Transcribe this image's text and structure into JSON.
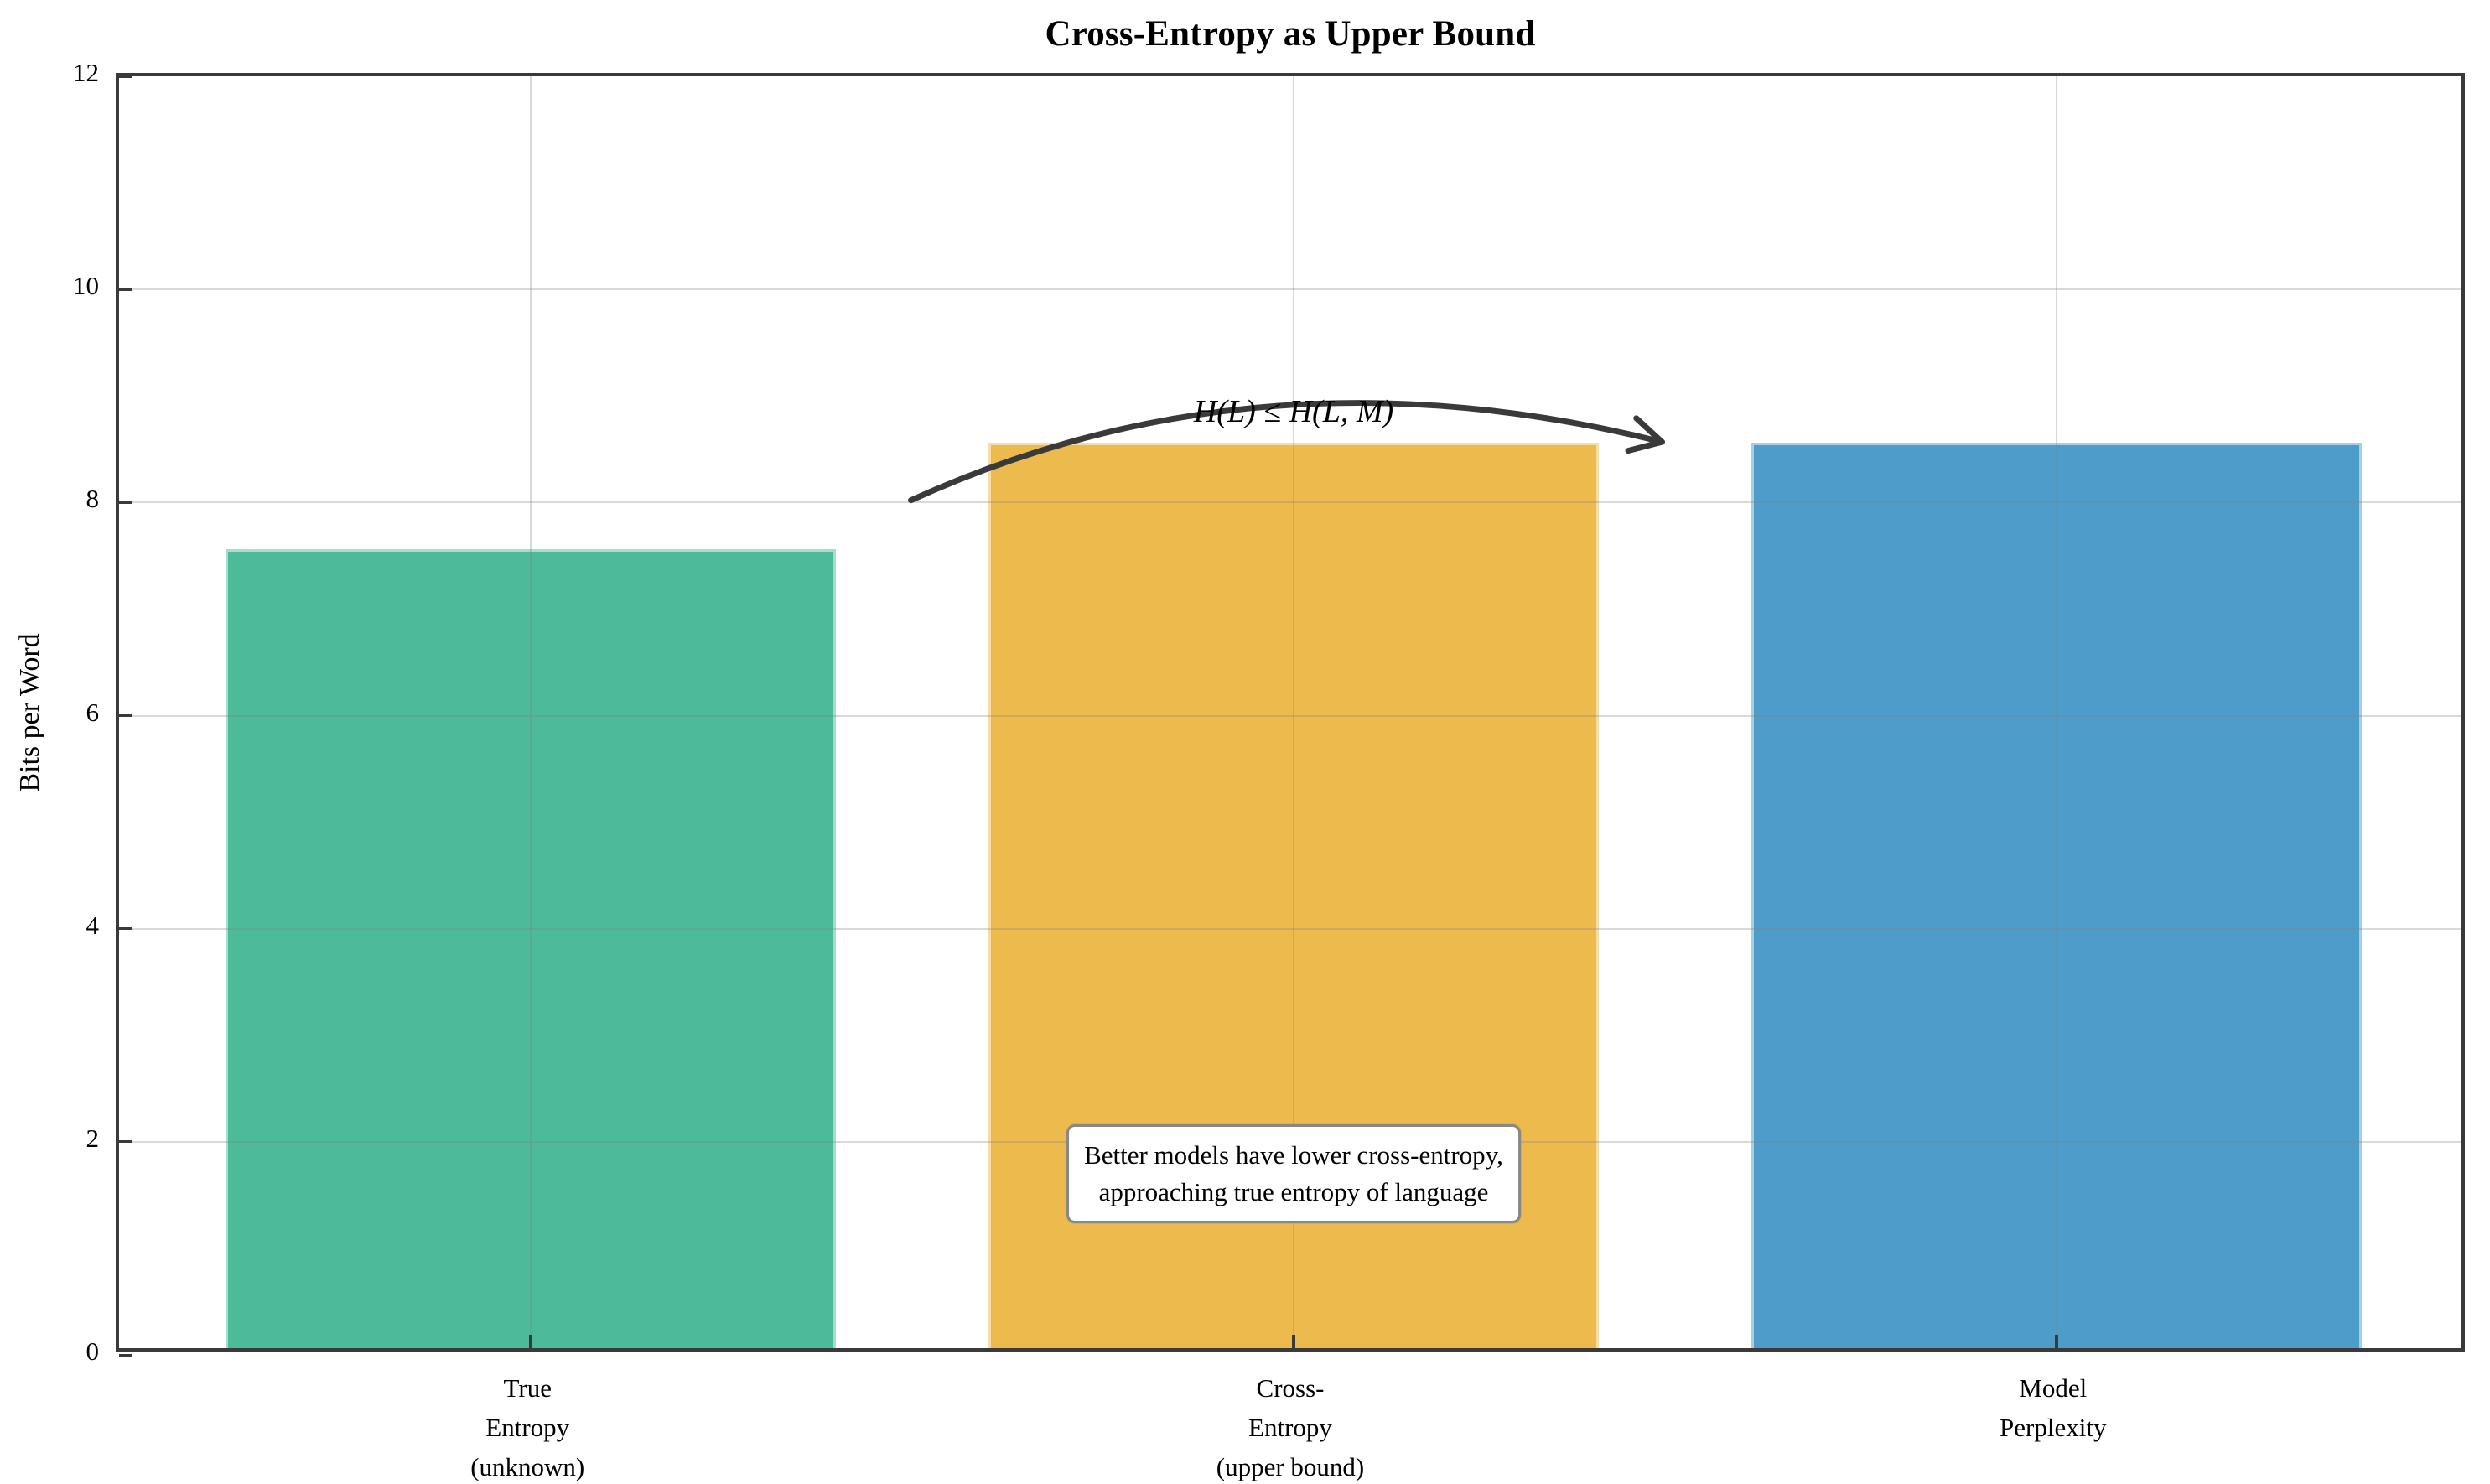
{
  "chart_data": {
    "type": "bar",
    "title": "Cross-Entropy as Upper Bound",
    "xlabel": "",
    "ylabel": "Bits per Word",
    "ylim": [
      0,
      12
    ],
    "yticks": [
      0,
      2,
      4,
      6,
      8,
      10,
      12
    ],
    "xlim": [
      -0.54,
      2.54
    ],
    "grid": true,
    "legend": "none",
    "bar_width": 0.8,
    "categories": [
      "True\nEntropy\n(unknown)",
      "Cross-\nEntropy\n(upper bound)",
      "Model\nPerplexity"
    ],
    "values": [
      7.5,
      8.5,
      8.5
    ],
    "bar_colors": [
      "#4DBA9A",
      "#ECBA4D",
      "#4D9CCA"
    ],
    "axis_color": "#3a3a3a",
    "annotations": {
      "inequality": {
        "text": "H(L) ≤ H(L, M)",
        "xy": [
          1.0,
          8.85
        ]
      },
      "arrow": {
        "from": [
          0.5,
          8.0
        ],
        "control": [
          0.96,
          9.5
        ],
        "to": [
          1.49,
          8.55
        ],
        "color": "#3a3a3a"
      },
      "note": {
        "text": "Better models have lower cross-entropy,\napproaching true entropy of language",
        "xy": [
          1.0,
          1.7
        ]
      }
    }
  }
}
